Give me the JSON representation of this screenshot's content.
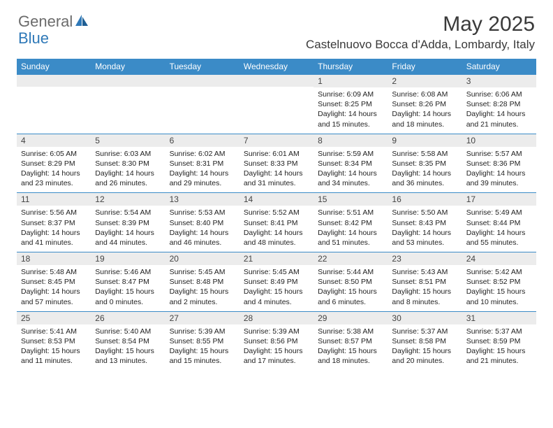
{
  "logo": {
    "text1": "General",
    "text2": "Blue"
  },
  "title": "May 2025",
  "location": "Castelnuovo Bocca d'Adda, Lombardy, Italy",
  "colors": {
    "header_bg": "#3b8bc7",
    "header_text": "#ffffff",
    "daynum_bg": "#ececec",
    "row_border": "#3b8bc7",
    "logo_gray": "#6b6b6b",
    "logo_blue": "#2f79b8"
  },
  "day_headers": [
    "Sunday",
    "Monday",
    "Tuesday",
    "Wednesday",
    "Thursday",
    "Friday",
    "Saturday"
  ],
  "weeks": [
    [
      {
        "n": "",
        "sr": "",
        "ss": "",
        "dl": ""
      },
      {
        "n": "",
        "sr": "",
        "ss": "",
        "dl": ""
      },
      {
        "n": "",
        "sr": "",
        "ss": "",
        "dl": ""
      },
      {
        "n": "",
        "sr": "",
        "ss": "",
        "dl": ""
      },
      {
        "n": "1",
        "sr": "Sunrise: 6:09 AM",
        "ss": "Sunset: 8:25 PM",
        "dl": "Daylight: 14 hours and 15 minutes."
      },
      {
        "n": "2",
        "sr": "Sunrise: 6:08 AM",
        "ss": "Sunset: 8:26 PM",
        "dl": "Daylight: 14 hours and 18 minutes."
      },
      {
        "n": "3",
        "sr": "Sunrise: 6:06 AM",
        "ss": "Sunset: 8:28 PM",
        "dl": "Daylight: 14 hours and 21 minutes."
      }
    ],
    [
      {
        "n": "4",
        "sr": "Sunrise: 6:05 AM",
        "ss": "Sunset: 8:29 PM",
        "dl": "Daylight: 14 hours and 23 minutes."
      },
      {
        "n": "5",
        "sr": "Sunrise: 6:03 AM",
        "ss": "Sunset: 8:30 PM",
        "dl": "Daylight: 14 hours and 26 minutes."
      },
      {
        "n": "6",
        "sr": "Sunrise: 6:02 AM",
        "ss": "Sunset: 8:31 PM",
        "dl": "Daylight: 14 hours and 29 minutes."
      },
      {
        "n": "7",
        "sr": "Sunrise: 6:01 AM",
        "ss": "Sunset: 8:33 PM",
        "dl": "Daylight: 14 hours and 31 minutes."
      },
      {
        "n": "8",
        "sr": "Sunrise: 5:59 AM",
        "ss": "Sunset: 8:34 PM",
        "dl": "Daylight: 14 hours and 34 minutes."
      },
      {
        "n": "9",
        "sr": "Sunrise: 5:58 AM",
        "ss": "Sunset: 8:35 PM",
        "dl": "Daylight: 14 hours and 36 minutes."
      },
      {
        "n": "10",
        "sr": "Sunrise: 5:57 AM",
        "ss": "Sunset: 8:36 PM",
        "dl": "Daylight: 14 hours and 39 minutes."
      }
    ],
    [
      {
        "n": "11",
        "sr": "Sunrise: 5:56 AM",
        "ss": "Sunset: 8:37 PM",
        "dl": "Daylight: 14 hours and 41 minutes."
      },
      {
        "n": "12",
        "sr": "Sunrise: 5:54 AM",
        "ss": "Sunset: 8:39 PM",
        "dl": "Daylight: 14 hours and 44 minutes."
      },
      {
        "n": "13",
        "sr": "Sunrise: 5:53 AM",
        "ss": "Sunset: 8:40 PM",
        "dl": "Daylight: 14 hours and 46 minutes."
      },
      {
        "n": "14",
        "sr": "Sunrise: 5:52 AM",
        "ss": "Sunset: 8:41 PM",
        "dl": "Daylight: 14 hours and 48 minutes."
      },
      {
        "n": "15",
        "sr": "Sunrise: 5:51 AM",
        "ss": "Sunset: 8:42 PM",
        "dl": "Daylight: 14 hours and 51 minutes."
      },
      {
        "n": "16",
        "sr": "Sunrise: 5:50 AM",
        "ss": "Sunset: 8:43 PM",
        "dl": "Daylight: 14 hours and 53 minutes."
      },
      {
        "n": "17",
        "sr": "Sunrise: 5:49 AM",
        "ss": "Sunset: 8:44 PM",
        "dl": "Daylight: 14 hours and 55 minutes."
      }
    ],
    [
      {
        "n": "18",
        "sr": "Sunrise: 5:48 AM",
        "ss": "Sunset: 8:45 PM",
        "dl": "Daylight: 14 hours and 57 minutes."
      },
      {
        "n": "19",
        "sr": "Sunrise: 5:46 AM",
        "ss": "Sunset: 8:47 PM",
        "dl": "Daylight: 15 hours and 0 minutes."
      },
      {
        "n": "20",
        "sr": "Sunrise: 5:45 AM",
        "ss": "Sunset: 8:48 PM",
        "dl": "Daylight: 15 hours and 2 minutes."
      },
      {
        "n": "21",
        "sr": "Sunrise: 5:45 AM",
        "ss": "Sunset: 8:49 PM",
        "dl": "Daylight: 15 hours and 4 minutes."
      },
      {
        "n": "22",
        "sr": "Sunrise: 5:44 AM",
        "ss": "Sunset: 8:50 PM",
        "dl": "Daylight: 15 hours and 6 minutes."
      },
      {
        "n": "23",
        "sr": "Sunrise: 5:43 AM",
        "ss": "Sunset: 8:51 PM",
        "dl": "Daylight: 15 hours and 8 minutes."
      },
      {
        "n": "24",
        "sr": "Sunrise: 5:42 AM",
        "ss": "Sunset: 8:52 PM",
        "dl": "Daylight: 15 hours and 10 minutes."
      }
    ],
    [
      {
        "n": "25",
        "sr": "Sunrise: 5:41 AM",
        "ss": "Sunset: 8:53 PM",
        "dl": "Daylight: 15 hours and 11 minutes."
      },
      {
        "n": "26",
        "sr": "Sunrise: 5:40 AM",
        "ss": "Sunset: 8:54 PM",
        "dl": "Daylight: 15 hours and 13 minutes."
      },
      {
        "n": "27",
        "sr": "Sunrise: 5:39 AM",
        "ss": "Sunset: 8:55 PM",
        "dl": "Daylight: 15 hours and 15 minutes."
      },
      {
        "n": "28",
        "sr": "Sunrise: 5:39 AM",
        "ss": "Sunset: 8:56 PM",
        "dl": "Daylight: 15 hours and 17 minutes."
      },
      {
        "n": "29",
        "sr": "Sunrise: 5:38 AM",
        "ss": "Sunset: 8:57 PM",
        "dl": "Daylight: 15 hours and 18 minutes."
      },
      {
        "n": "30",
        "sr": "Sunrise: 5:37 AM",
        "ss": "Sunset: 8:58 PM",
        "dl": "Daylight: 15 hours and 20 minutes."
      },
      {
        "n": "31",
        "sr": "Sunrise: 5:37 AM",
        "ss": "Sunset: 8:59 PM",
        "dl": "Daylight: 15 hours and 21 minutes."
      }
    ]
  ]
}
